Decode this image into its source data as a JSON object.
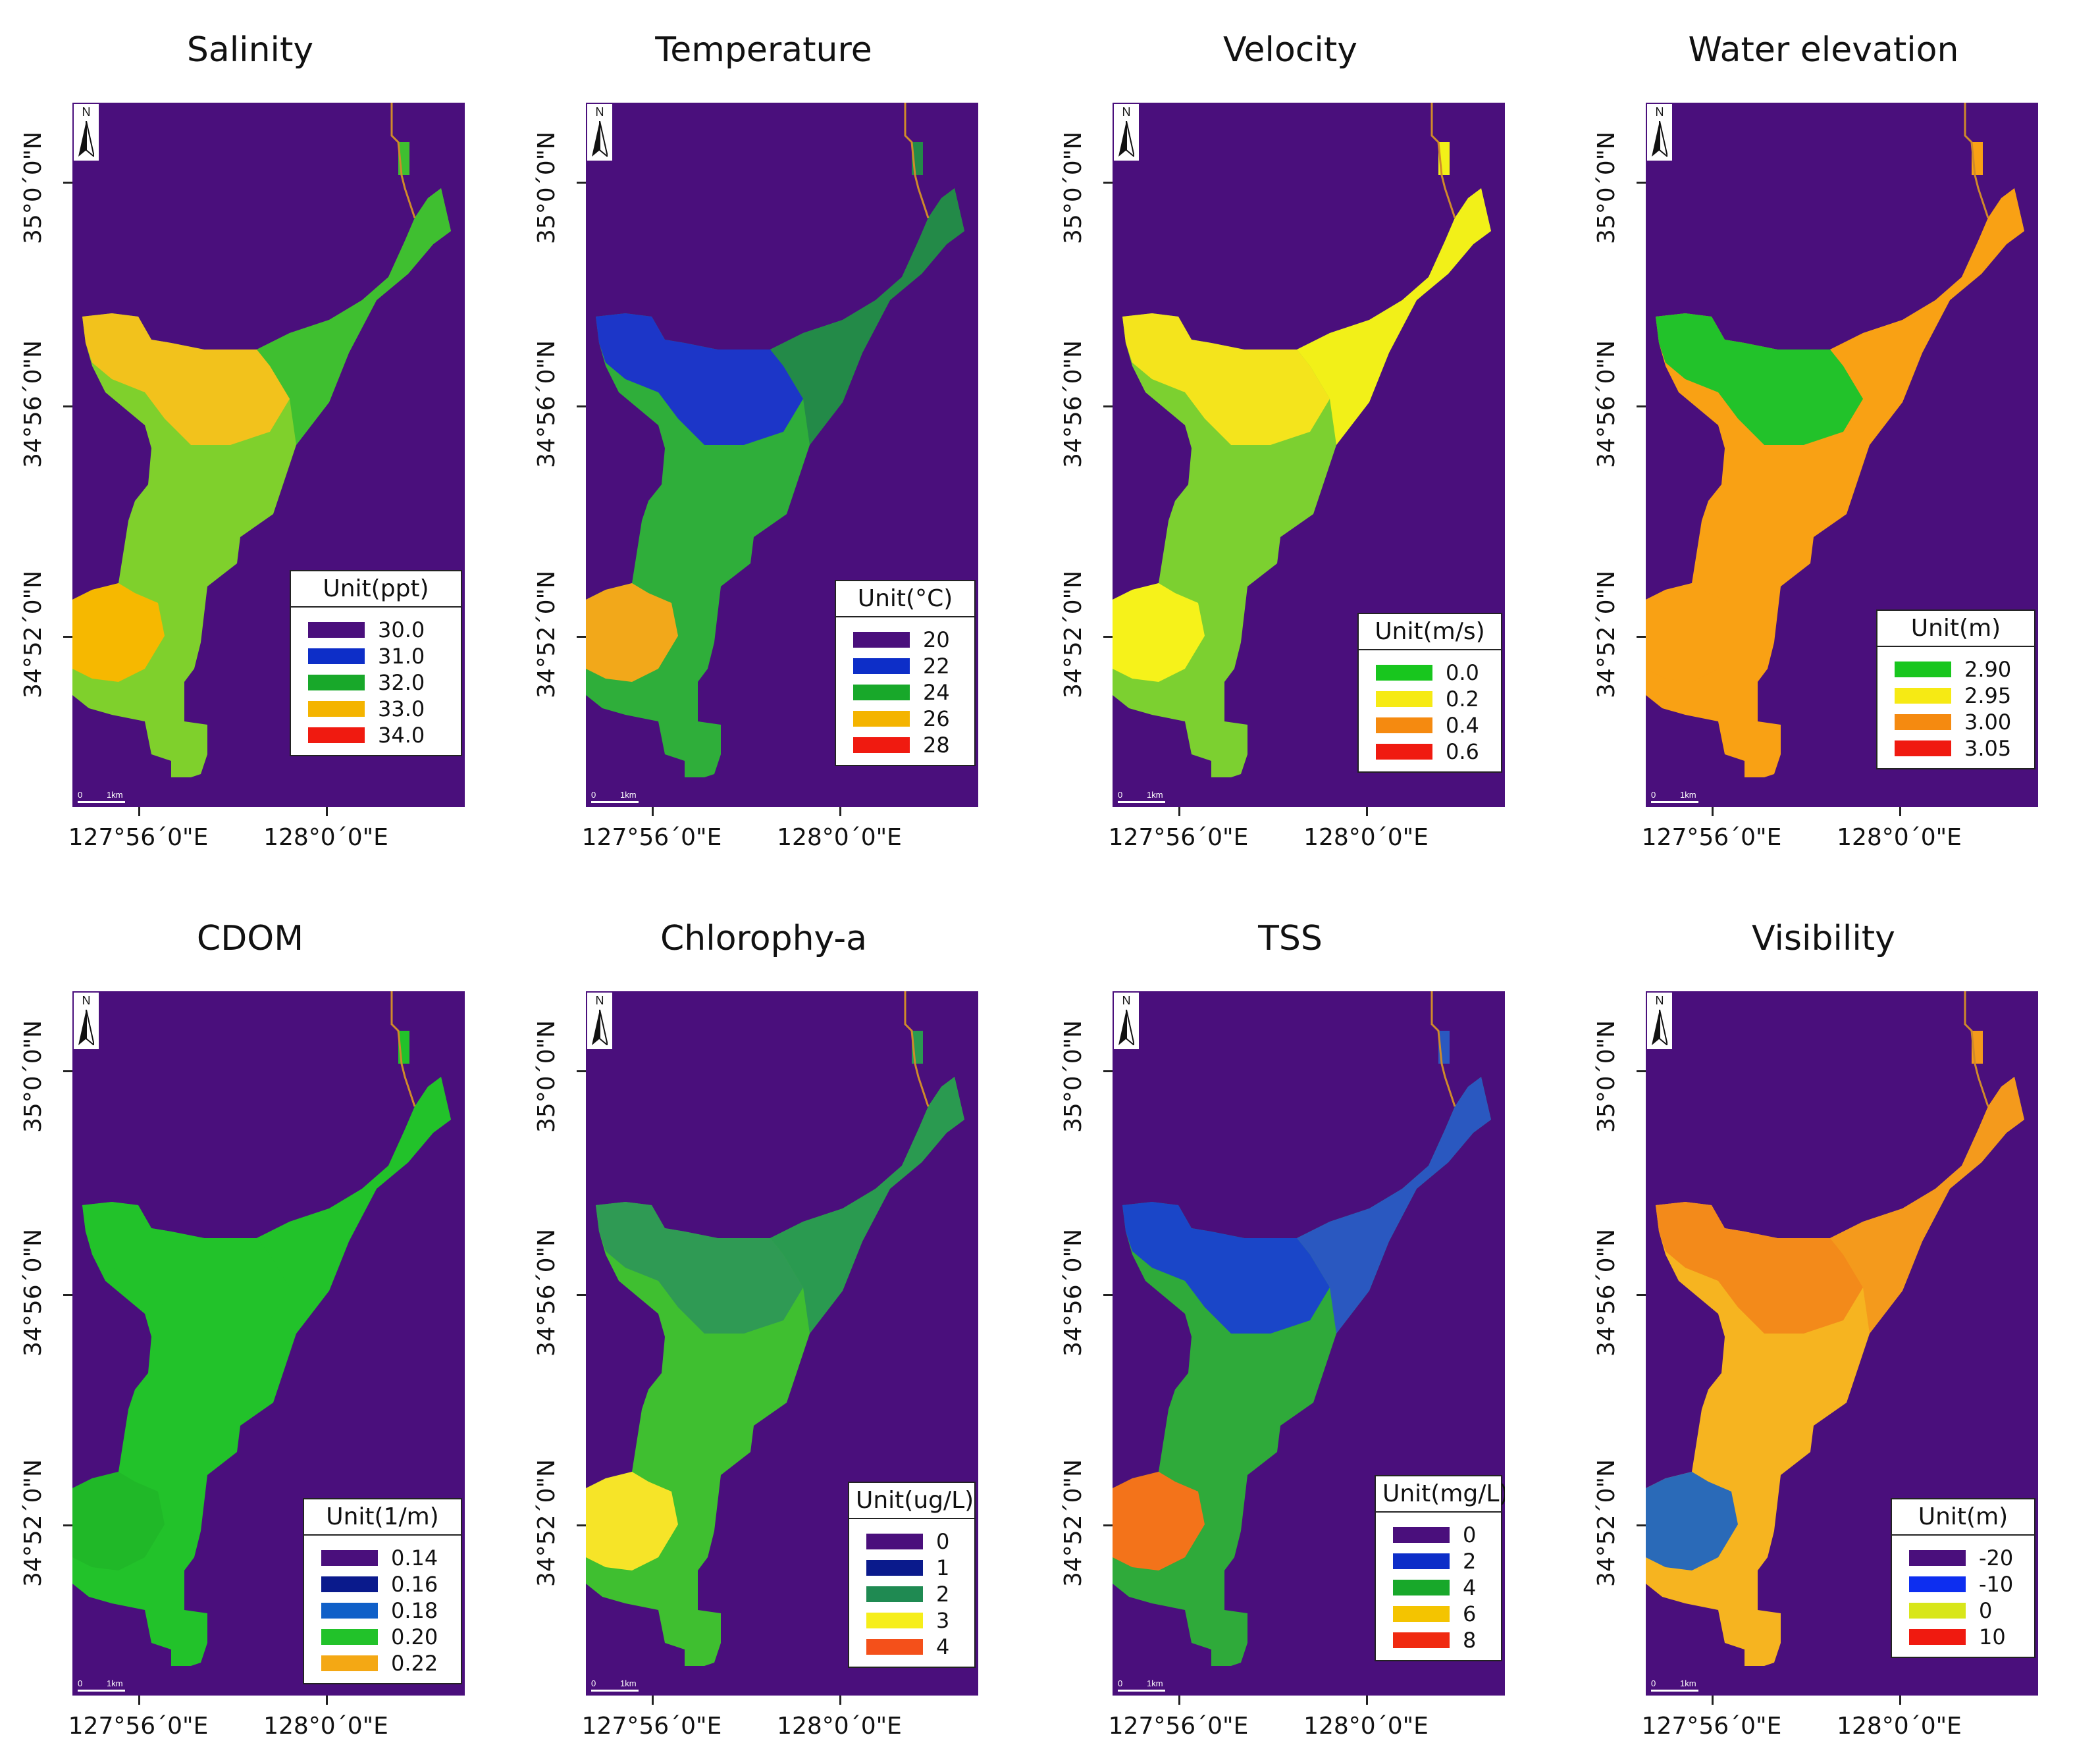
{
  "figure": {
    "panels": [
      {
        "title": "Salinity",
        "legend": {
          "unit": "Unit(ppt)",
          "entries": [
            {
              "label": "30.0",
              "color": "#4a0f7c"
            },
            {
              "label": "31.0",
              "color": "#0d2ec8"
            },
            {
              "label": "32.0",
              "color": "#18a82a"
            },
            {
              "label": "33.0",
              "color": "#f4b400"
            },
            {
              "label": "34.0",
              "color": "#f01a10"
            }
          ]
        },
        "fills": {
          "main": "#7fd02c",
          "upper": "#3fbf30",
          "west": "#f2c21c",
          "core": "#f6b800"
        }
      },
      {
        "title": "Temperature",
        "legend": {
          "unit": "Unit(°C)",
          "entries": [
            {
              "label": "20",
              "color": "#4a0f7c"
            },
            {
              "label": "22",
              "color": "#0d2ec8"
            },
            {
              "label": "24",
              "color": "#18a82a"
            },
            {
              "label": "26",
              "color": "#f4b400"
            },
            {
              "label": "28",
              "color": "#f01a10"
            }
          ]
        },
        "fills": {
          "main": "#2fae3a",
          "upper": "#238a48",
          "west": "#1c36c8",
          "core": "#f2a81a"
        }
      },
      {
        "title": "Velocity",
        "legend": {
          "unit": "Unit(m/s)",
          "entries": [
            {
              "label": "0.0",
              "color": "#18c61e"
            },
            {
              "label": "0.2",
              "color": "#f6ea14"
            },
            {
              "label": "0.4",
              "color": "#f58a10"
            },
            {
              "label": "0.6",
              "color": "#f01a10"
            }
          ]
        },
        "fills": {
          "main": "#7cd030",
          "upper": "#f2f018",
          "west": "#f4e41c",
          "core": "#f6f21a"
        }
      },
      {
        "title": "Water elevation",
        "legend": {
          "unit": "Unit(m)",
          "entries": [
            {
              "label": "2.90",
              "color": "#18c61e"
            },
            {
              "label": "2.95",
              "color": "#f6ea14"
            },
            {
              "label": "3.00",
              "color": "#f58a10"
            },
            {
              "label": "3.05",
              "color": "#f01a10"
            }
          ]
        },
        "fills": {
          "main": "#f9a114",
          "upper": "#f9a114",
          "west": "#22c22a",
          "core": "#f9a114"
        }
      },
      {
        "title": "CDOM",
        "legend": {
          "unit": "Unit(1/m)",
          "entries": [
            {
              "label": "0.14",
              "color": "#4a0f7c"
            },
            {
              "label": "0.16",
              "color": "#0a1a8c"
            },
            {
              "label": "0.18",
              "color": "#1060c8"
            },
            {
              "label": "0.20",
              "color": "#22c22a"
            },
            {
              "label": "0.22",
              "color": "#f4a814"
            }
          ]
        },
        "fills": {
          "main": "#22c22a",
          "upper": "#22c22a",
          "west": "#22c22a",
          "core": "#20b828"
        }
      },
      {
        "title": "Chlorophy-a",
        "legend": {
          "unit": "Unit(ug/L)",
          "entries": [
            {
              "label": "0",
              "color": "#4a0f7c"
            },
            {
              "label": "1",
              "color": "#0a1a8c"
            },
            {
              "label": "2",
              "color": "#1f8a52"
            },
            {
              "label": "3",
              "color": "#f6ee1a"
            },
            {
              "label": "4",
              "color": "#f4501a"
            }
          ]
        },
        "fills": {
          "main": "#3fbf30",
          "upper": "#2a9a50",
          "west": "#2f9a54",
          "core": "#f6e428"
        }
      },
      {
        "title": "TSS",
        "legend": {
          "unit": "Unit(mg/L)",
          "entries": [
            {
              "label": "0",
              "color": "#4a0f7c"
            },
            {
              "label": "2",
              "color": "#0d2ec8"
            },
            {
              "label": "4",
              "color": "#18a82a"
            },
            {
              "label": "6",
              "color": "#f4c400"
            },
            {
              "label": "8",
              "color": "#f02a10"
            }
          ]
        },
        "fills": {
          "main": "#2faa3a",
          "upper": "#2a58c0",
          "west": "#1a46c8",
          "core": "#f3731a"
        }
      },
      {
        "title": "Visibility",
        "legend": {
          "unit": "Unit(m)",
          "entries": [
            {
              "label": "-20",
              "color": "#4a0f7c"
            },
            {
              "label": "-10",
              "color": "#0d2ef0"
            },
            {
              "label": "0",
              "color": "#d8e61a"
            },
            {
              "label": "10",
              "color": "#f01a10"
            }
          ]
        },
        "fills": {
          "main": "#f6b420",
          "upper": "#f49a1c",
          "west": "#f38a1a",
          "core": "#2a6ab8"
        }
      }
    ],
    "axes": {
      "lat_labels": [
        "35°0´0\"N",
        "34°56´0\"N",
        "34°52´0\"N"
      ],
      "lon_labels": [
        "127°56´0\"E",
        "128°0´0\"E"
      ]
    },
    "north_label": "N",
    "scale": {
      "zero": "0",
      "distance": "1km"
    }
  }
}
